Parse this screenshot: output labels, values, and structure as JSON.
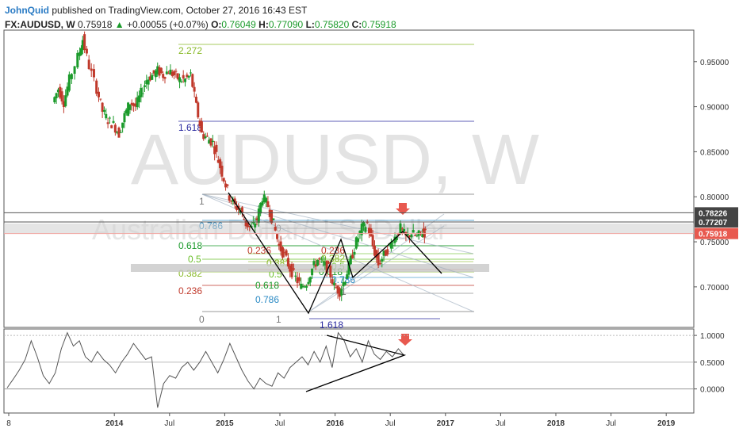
{
  "header": {
    "author": "JohnQuid",
    "published_text": "published on TradingView.com, October 27, 2016 16:43 EST",
    "symbol": "FX:AUDUSD, W",
    "last": "0.75918",
    "change": "+0.00055 (+0.07%)",
    "open_label": "O:",
    "open": "0.76049",
    "high_label": "H:",
    "high": "0.77090",
    "low_label": "L:",
    "low": "0.75820",
    "close_label": "C:",
    "close": "0.75918"
  },
  "watermark": {
    "symbol": "AUDUSD, W",
    "description": "Australian Dollar/U.S. Dollar"
  },
  "colors": {
    "up": "#1a9a2a",
    "down": "#c0392b",
    "price_tag": "#e8594f",
    "level_tag": "#444444",
    "arrow": "#e8594f"
  },
  "chart_data": [
    {
      "type": "candlestick",
      "y_scale": {
        "min": 0.655,
        "max": 0.985
      },
      "x_ticks": [
        {
          "label": "8",
          "x": 0.0
        },
        {
          "label": "2014",
          "x": 2014.0,
          "bold": true
        },
        {
          "label": "Jul",
          "x": 2014.5
        },
        {
          "label": "2015",
          "x": 2015.0,
          "bold": true
        },
        {
          "label": "Jul",
          "x": 2015.5
        },
        {
          "label": "2016",
          "x": 2016.0,
          "bold": true
        },
        {
          "label": "Jul",
          "x": 2016.5
        },
        {
          "label": "2017",
          "x": 2017.0,
          "bold": true
        },
        {
          "label": "Jul",
          "x": 2017.5
        },
        {
          "label": "2018",
          "x": 2018.0,
          "bold": true
        },
        {
          "label": "Jul",
          "x": 2018.5
        },
        {
          "label": "2019",
          "x": 2019.0,
          "bold": true
        }
      ],
      "y_ticks": [
        "0.95000",
        "0.90000",
        "0.85000",
        "0.80000",
        "0.75000",
        "0.70000"
      ],
      "y_tick_values": [
        0.95,
        0.9,
        0.85,
        0.8,
        0.75,
        0.7
      ],
      "price_labels": [
        {
          "value": 0.78226,
          "label": "0.78226",
          "kind": "level"
        },
        {
          "value": 0.77207,
          "label": "0.77207",
          "kind": "level"
        },
        {
          "value": 0.75918,
          "label": "0.75918",
          "kind": "last"
        }
      ],
      "price_path": [
        [
          2013.45,
          0.905
        ],
        [
          2013.5,
          0.92
        ],
        [
          2013.55,
          0.905
        ],
        [
          2013.6,
          0.93
        ],
        [
          2013.68,
          0.955
        ],
        [
          2013.72,
          0.975
        ],
        [
          2013.78,
          0.945
        ],
        [
          2013.85,
          0.92
        ],
        [
          2013.9,
          0.895
        ],
        [
          2013.95,
          0.885
        ],
        [
          2014.0,
          0.88
        ],
        [
          2014.05,
          0.87
        ],
        [
          2014.1,
          0.89
        ],
        [
          2014.15,
          0.905
        ],
        [
          2014.2,
          0.9
        ],
        [
          2014.25,
          0.915
        ],
        [
          2014.3,
          0.93
        ],
        [
          2014.35,
          0.935
        ],
        [
          2014.4,
          0.94
        ],
        [
          2014.45,
          0.935
        ],
        [
          2014.5,
          0.94
        ],
        [
          2014.55,
          0.935
        ],
        [
          2014.6,
          0.93
        ],
        [
          2014.65,
          0.93
        ],
        [
          2014.7,
          0.935
        ],
        [
          2014.75,
          0.9
        ],
        [
          2014.8,
          0.87
        ],
        [
          2014.85,
          0.865
        ],
        [
          2014.9,
          0.86
        ],
        [
          2014.95,
          0.84
        ],
        [
          2015.0,
          0.82
        ],
        [
          2015.05,
          0.8
        ],
        [
          2015.1,
          0.79
        ],
        [
          2015.15,
          0.785
        ],
        [
          2015.2,
          0.77
        ],
        [
          2015.25,
          0.765
        ],
        [
          2015.3,
          0.775
        ],
        [
          2015.35,
          0.8
        ],
        [
          2015.4,
          0.79
        ],
        [
          2015.45,
          0.77
        ],
        [
          2015.5,
          0.745
        ],
        [
          2015.55,
          0.735
        ],
        [
          2015.6,
          0.72
        ],
        [
          2015.65,
          0.71
        ],
        [
          2015.7,
          0.7
        ],
        [
          2015.75,
          0.705
        ],
        [
          2015.8,
          0.72
        ],
        [
          2015.85,
          0.73
        ],
        [
          2015.9,
          0.725
        ],
        [
          2015.95,
          0.72
        ],
        [
          2016.0,
          0.7
        ],
        [
          2016.05,
          0.695
        ],
        [
          2016.1,
          0.71
        ],
        [
          2016.15,
          0.73
        ],
        [
          2016.2,
          0.75
        ],
        [
          2016.25,
          0.765
        ],
        [
          2016.3,
          0.77
        ],
        [
          2016.35,
          0.745
        ],
        [
          2016.4,
          0.725
        ],
        [
          2016.45,
          0.735
        ],
        [
          2016.5,
          0.745
        ],
        [
          2016.55,
          0.755
        ],
        [
          2016.6,
          0.765
        ],
        [
          2016.65,
          0.755
        ],
        [
          2016.7,
          0.76
        ],
        [
          2016.75,
          0.755
        ],
        [
          2016.8,
          0.762
        ],
        [
          2016.82,
          0.759
        ]
      ],
      "fibonacci_labels": [
        {
          "text": "2.272",
          "color": "#8aba2a"
        },
        {
          "text": "1.618",
          "color": "#2a2aa0"
        },
        {
          "text": "1",
          "color": "#777777"
        },
        {
          "text": "0.786",
          "color": "#2a8ac4"
        },
        {
          "text": "0",
          "color": "#777777"
        },
        {
          "text": "0.618",
          "color": "#1a9a2a"
        },
        {
          "text": "0.5",
          "color": "#6abf2a"
        },
        {
          "text": "0.382",
          "color": "#8aba2a"
        },
        {
          "text": "0.236",
          "color": "#c0392b"
        },
        {
          "text": "0.236",
          "color": "#c0392b"
        },
        {
          "text": "0.382",
          "color": "#8aba2a"
        },
        {
          "text": "0.5",
          "color": "#6abf2a"
        },
        {
          "text": "0.618",
          "color": "#1a9a2a"
        },
        {
          "text": "0.786",
          "color": "#2a8ac4"
        },
        {
          "text": "0",
          "color": "#777777"
        },
        {
          "text": "1",
          "color": "#777777"
        },
        {
          "text": "0.236",
          "color": "#c0392b"
        },
        {
          "text": "0.382",
          "color": "#8aba2a"
        },
        {
          "text": "0.5",
          "color": "#6abf2a"
        },
        {
          "text": "0.618",
          "color": "#1a9a2a"
        },
        {
          "text": "0.786",
          "color": "#2a8ac4"
        },
        {
          "text": "1",
          "color": "#777777"
        },
        {
          "text": "1.618",
          "color": "#2a2aa0"
        }
      ]
    },
    {
      "type": "line",
      "name": "",
      "y_ticks": [
        "1.0000",
        "0.5000",
        "0.0000"
      ],
      "y_tick_values": [
        1.0,
        0.5,
        0.0
      ],
      "y_scale": {
        "min": -0.45,
        "max": 1.12
      },
      "series": [
        {
          "values": [
            0.02,
            0.18,
            0.35,
            0.55,
            0.9,
            0.6,
            0.25,
            0.1,
            0.3,
            0.75,
            1.05,
            0.8,
            0.9,
            0.6,
            0.5,
            0.7,
            0.55,
            0.45,
            0.3,
            0.5,
            0.65,
            0.85,
            0.7,
            0.55,
            0.6,
            -0.35,
            0.1,
            0.25,
            0.2,
            0.4,
            0.5,
            0.35,
            0.5,
            0.7,
            0.5,
            0.3,
            0.55,
            0.85,
            0.6,
            0.35,
            0.15,
            0.0,
            0.2,
            0.1,
            0.05,
            0.3,
            0.2,
            0.4,
            0.5,
            0.6,
            0.45,
            0.7,
            0.5,
            0.8,
            0.4,
            1.05,
            0.9,
            0.6,
            0.75,
            0.5,
            0.9,
            0.65,
            0.55,
            0.7,
            0.6,
            0.75,
            0.62
          ]
        }
      ]
    }
  ]
}
